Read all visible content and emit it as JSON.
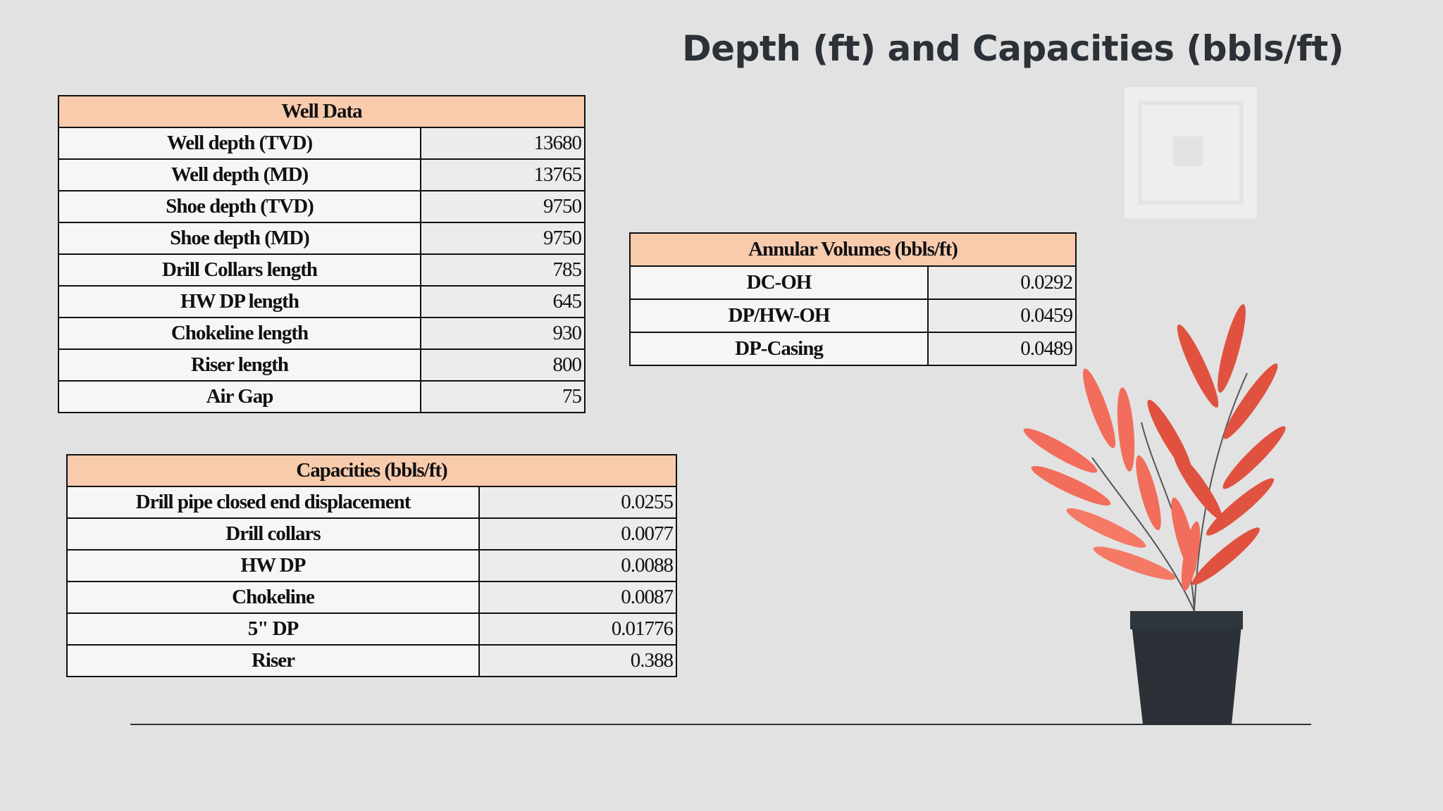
{
  "title": "Depth (ft) and Capacities (bbls/ft)",
  "well_data": {
    "title": "Well Data",
    "rows": [
      [
        "Well depth (TVD)",
        "13680"
      ],
      [
        "Well depth (MD)",
        "13765"
      ],
      [
        "Shoe depth (TVD)",
        "9750"
      ],
      [
        "Shoe depth (MD)",
        "9750"
      ],
      [
        "Drill Collars length",
        "785"
      ],
      [
        "HW DP length",
        "645"
      ],
      [
        "Chokeline length",
        "930"
      ],
      [
        "Riser length",
        "800"
      ],
      [
        "Air Gap",
        "75"
      ]
    ]
  },
  "annular_volumes": {
    "title": "Annular Volumes (bbls/ft)",
    "rows": [
      [
        "DC-OH",
        "0.0292"
      ],
      [
        "DP/HW-OH",
        "0.0459"
      ],
      [
        "DP-Casing",
        "0.0489"
      ]
    ]
  },
  "capacities": {
    "title": "Capacities (bbls/ft)",
    "rows": [
      [
        "Drill pipe closed end displacement",
        "0.0255"
      ],
      [
        "Drill collars",
        "0.0077"
      ],
      [
        "HW DP",
        "0.0088"
      ],
      [
        "Chokeline",
        "0.0087"
      ],
      [
        "5\" DP",
        "0.01776"
      ],
      [
        "Riser",
        "0.388"
      ]
    ]
  }
}
